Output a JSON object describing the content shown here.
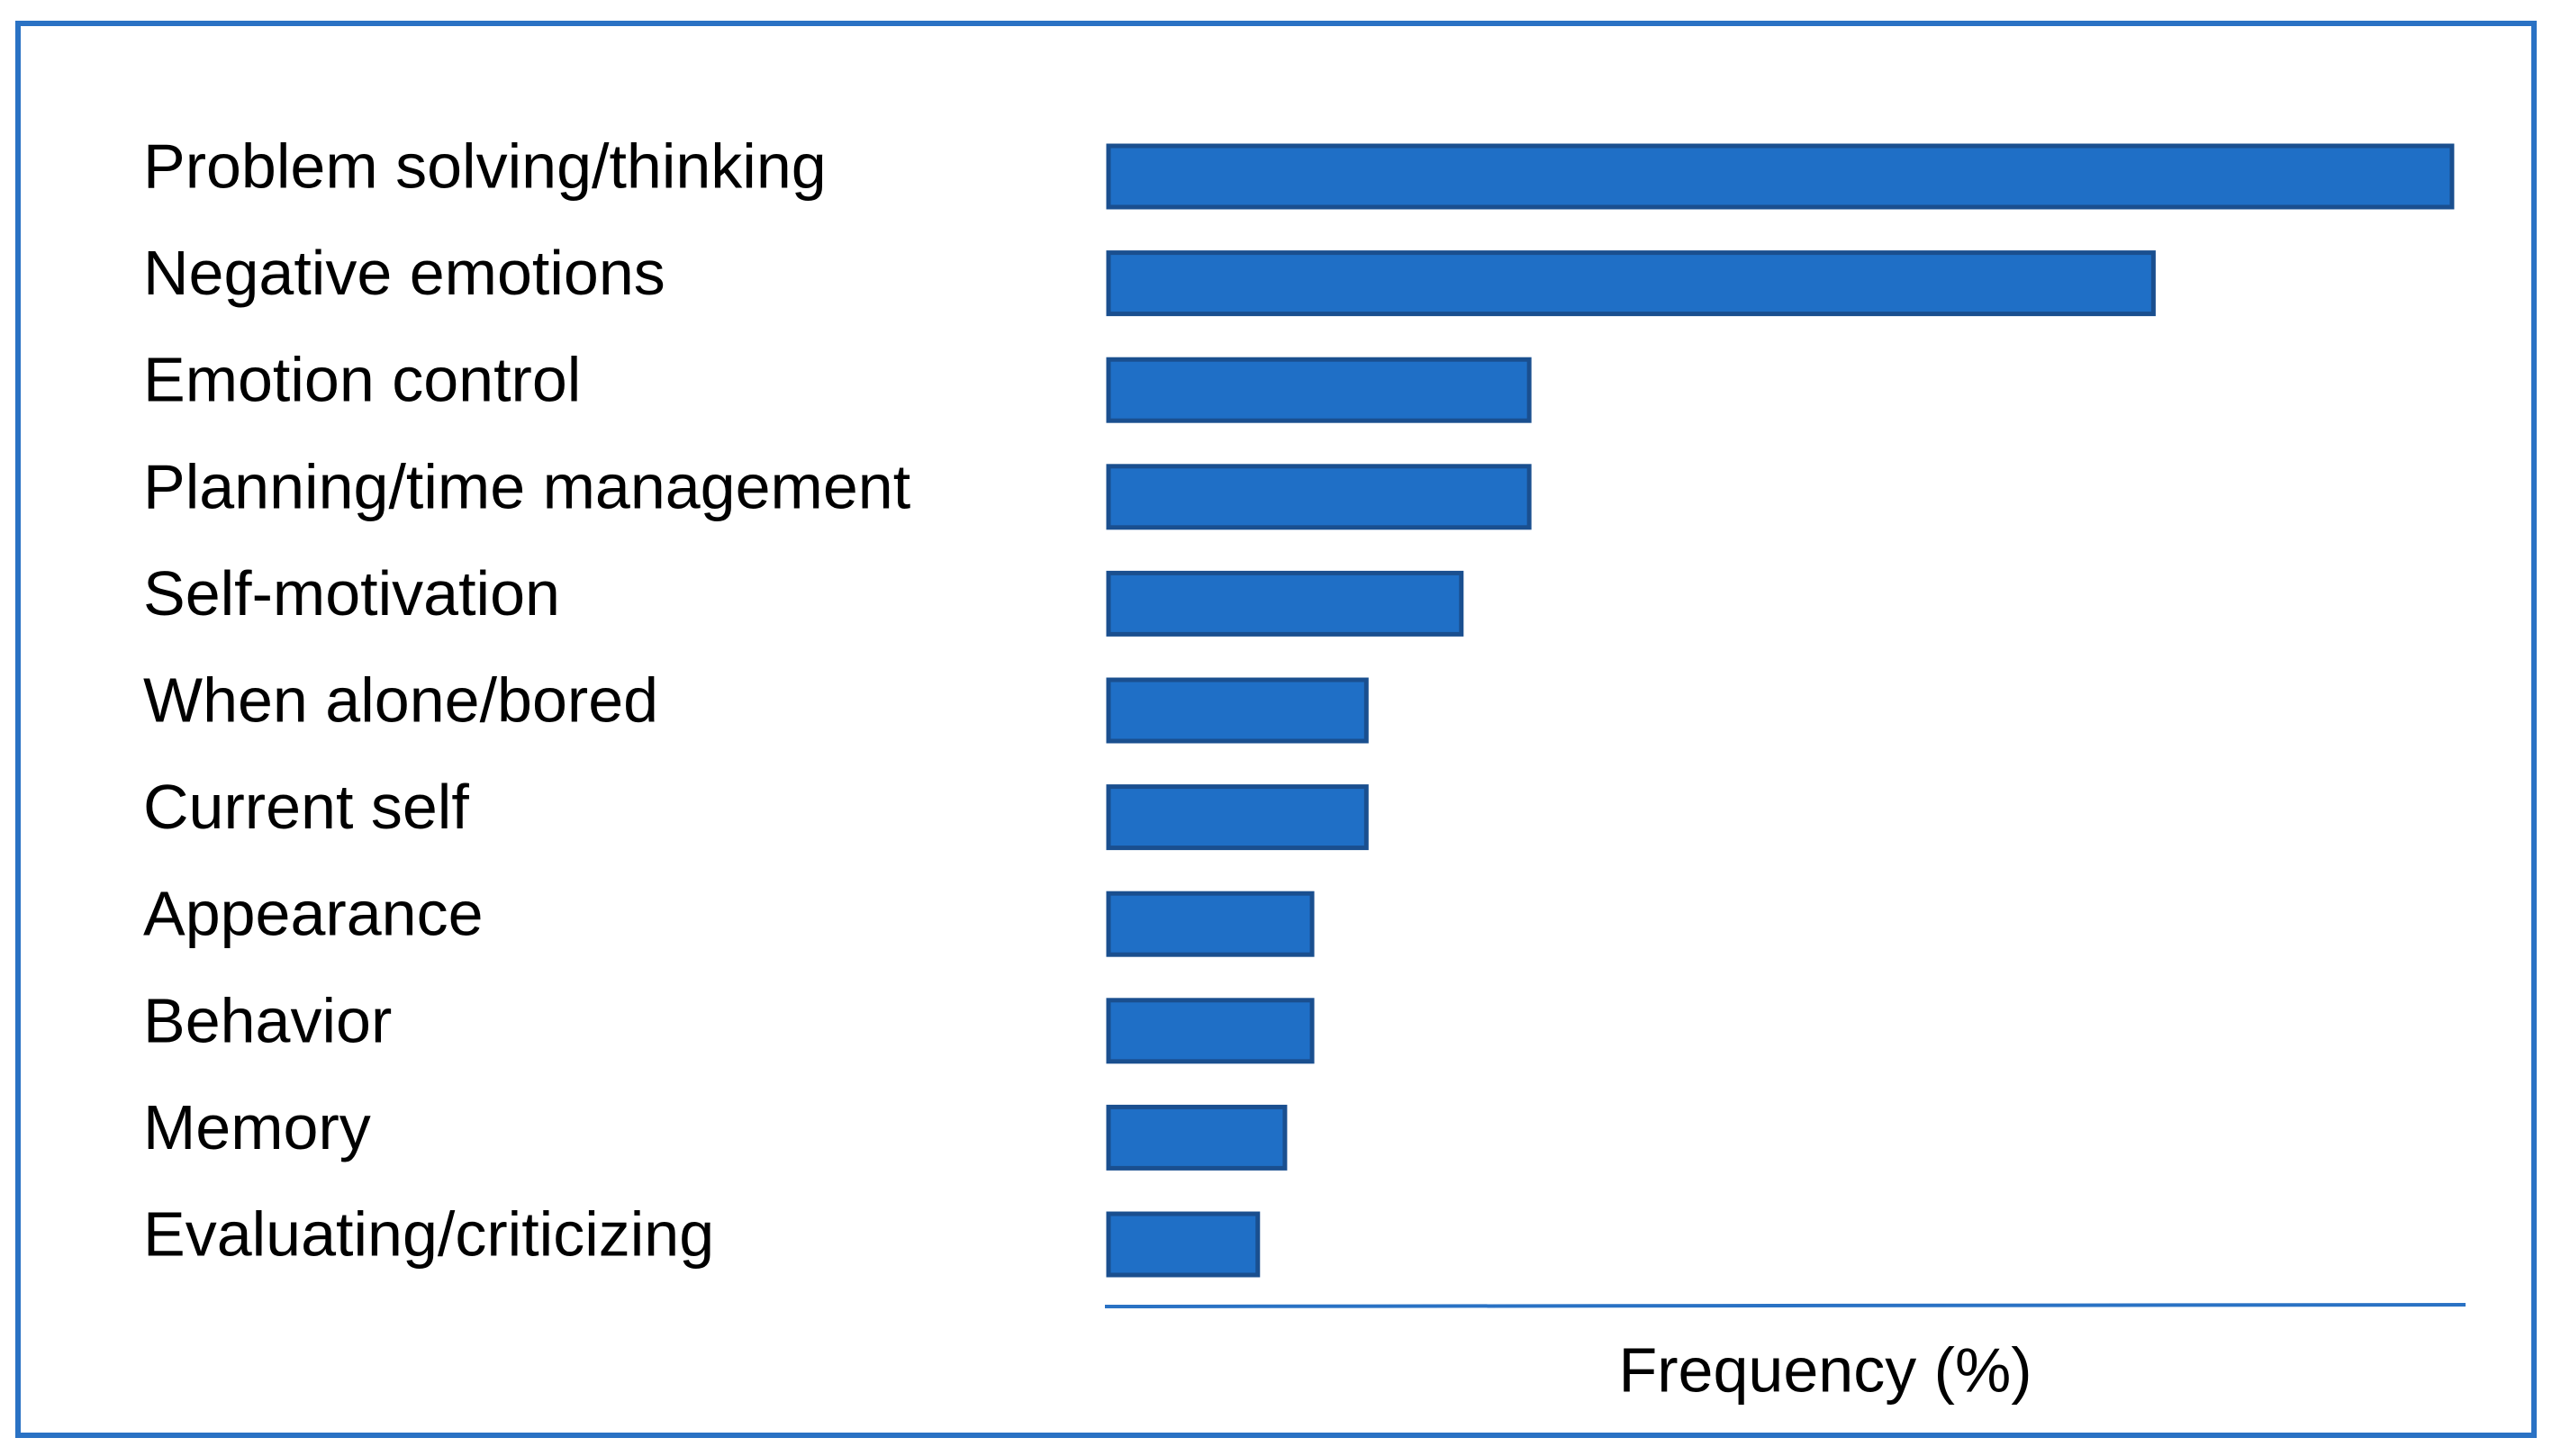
{
  "chart_data": {
    "type": "bar",
    "orientation": "horizontal",
    "x_label": "Frequency (%)",
    "categories": [
      "Problem solving/thinking",
      "Negative emotions",
      "Emotion control",
      "Planning/time management",
      "Self-motivation",
      "When alone/bored",
      "Current self",
      "Appearance",
      "Behavior",
      "Memory",
      "Evaluating/criticizing"
    ],
    "values": [
      99,
      77,
      31,
      31,
      26,
      19,
      19,
      15,
      15,
      13,
      11
    ],
    "color": "#1f6fc6",
    "xlim": [
      0,
      100
    ]
  }
}
